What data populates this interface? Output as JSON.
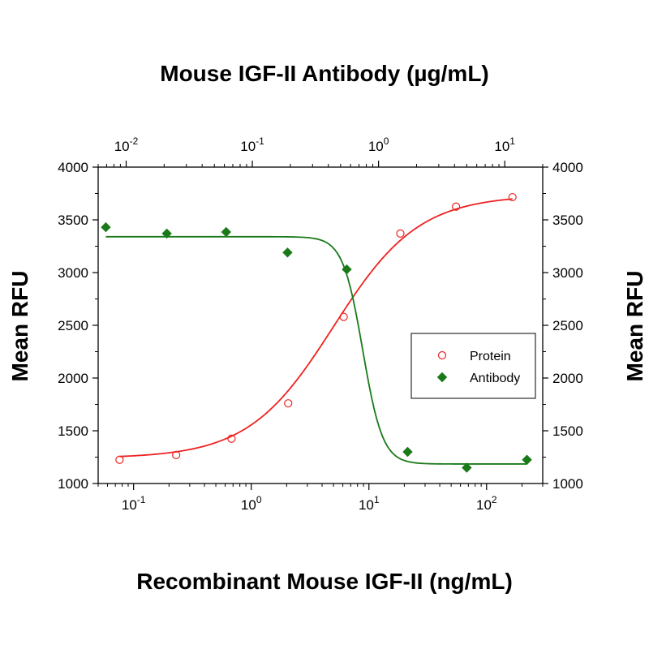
{
  "chart_data": {
    "type": "scatter",
    "top_title": "Mouse IGF-II Antibody (µg/mL)",
    "xlabel": "Recombinant Mouse IGF-II (ng/mL)",
    "ylabel_left": "Mean RFU",
    "ylabel_right": "Mean RFU",
    "xscale": "log",
    "ylim": [
      1000,
      4000
    ],
    "yticks": [
      1000,
      1500,
      2000,
      2500,
      3000,
      3500,
      4000
    ],
    "bottom_axis": {
      "xlim": [
        0.05,
        300
      ],
      "major_ticks": [
        {
          "value": 0.1,
          "base": "10",
          "exp": "-1"
        },
        {
          "value": 1,
          "base": "10",
          "exp": "0"
        },
        {
          "value": 10,
          "base": "10",
          "exp": "1"
        },
        {
          "value": 100,
          "base": "10",
          "exp": "2"
        }
      ]
    },
    "top_axis": {
      "xlim": [
        0.006,
        20
      ],
      "major_ticks": [
        {
          "value": 0.01,
          "base": "10",
          "exp": "-2"
        },
        {
          "value": 0.1,
          "base": "10",
          "exp": "-1"
        },
        {
          "value": 1,
          "base": "10",
          "exp": "0"
        },
        {
          "value": 10,
          "base": "10",
          "exp": "1"
        }
      ]
    },
    "legend_position": "center-right",
    "series": [
      {
        "name": "Protein",
        "axis": "bottom",
        "color": "#ee2222",
        "marker": "open-circle",
        "x": [
          0.076,
          0.23,
          0.68,
          2.06,
          6.1,
          18.5,
          55,
          166
        ],
        "y": [
          1225,
          1270,
          1425,
          1760,
          2580,
          3370,
          3625,
          3715
        ],
        "fit": {
          "bottom": 1240,
          "top": 3735,
          "ec50": 5.0,
          "hill": 1.2
        }
      },
      {
        "name": "Antibody",
        "axis": "top",
        "color": "#1a7a1a",
        "marker": "filled-diamond",
        "x": [
          0.0069,
          0.021,
          0.062,
          0.19,
          0.56,
          1.7,
          5.0,
          15
        ],
        "y": [
          3430,
          3370,
          3385,
          3190,
          3030,
          1300,
          1150,
          1225
        ],
        "fit": {
          "bottom": 1185,
          "top": 3340,
          "ec50": 0.75,
          "hill": 5.5
        }
      }
    ]
  }
}
